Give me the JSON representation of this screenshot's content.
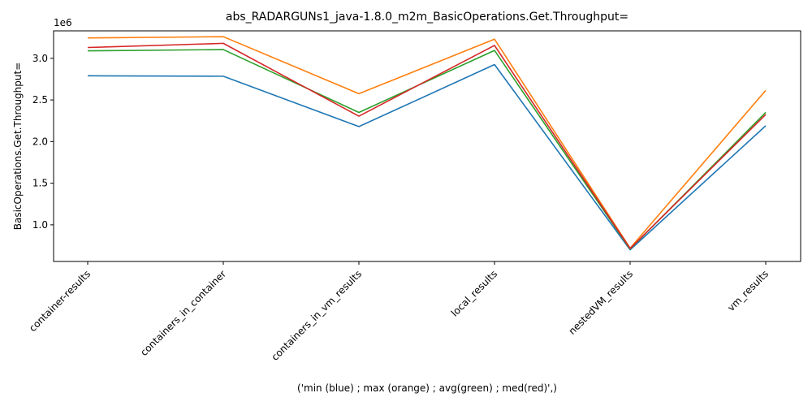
{
  "chart_data": {
    "type": "line",
    "title": "abs_RADARGUNs1_java-1.8.0_m2m_BasicOperations.Get.Throughput=",
    "xlabel": "('min (blue) ; max (orange) ; avg(green) ; med(red)',)",
    "ylabel": "BasicOperations.Get.Throughput=",
    "y_offset_label": "1e6",
    "categories": [
      "container-results",
      "containers_in_container",
      "containers_in_vm_results",
      "local_results",
      "nestedVM_results",
      "vm_results"
    ],
    "y_ticks": [
      1.0,
      1.5,
      2.0,
      2.5,
      3.0
    ],
    "y_tick_labels": [
      "1.0",
      "1.5",
      "2.0",
      "2.5",
      "3.0"
    ],
    "ylim": [
      0.56,
      3.33
    ],
    "grid": false,
    "series": [
      {
        "color": "#1f77b4",
        "values": [
          2.79,
          2.785,
          2.18,
          2.925,
          0.7,
          2.19
        ]
      },
      {
        "color": "#ff7f0e",
        "values": [
          3.245,
          3.26,
          2.575,
          3.23,
          0.72,
          2.615
        ]
      },
      {
        "color": "#2ca02c",
        "values": [
          3.09,
          3.105,
          2.35,
          3.095,
          0.71,
          2.35
        ]
      },
      {
        "color": "#d62728",
        "values": [
          3.13,
          3.18,
          2.305,
          3.155,
          0.715,
          2.325
        ]
      }
    ]
  }
}
